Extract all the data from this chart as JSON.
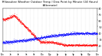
{
  "title": "Milwaukee Weather Outdoor Temp / Dew Point by Minute (24 Hours) (Alternate)",
  "title_fontsize": 3.0,
  "bg_color": "#ffffff",
  "plot_bg_color": "#ffffff",
  "red_color": "#ff0000",
  "blue_color": "#0000ff",
  "grid_color": "#bbbbbb",
  "ylim": [
    10,
    80
  ],
  "yticks": [
    20,
    30,
    40,
    50,
    60,
    70,
    80
  ],
  "num_points": 1440
}
